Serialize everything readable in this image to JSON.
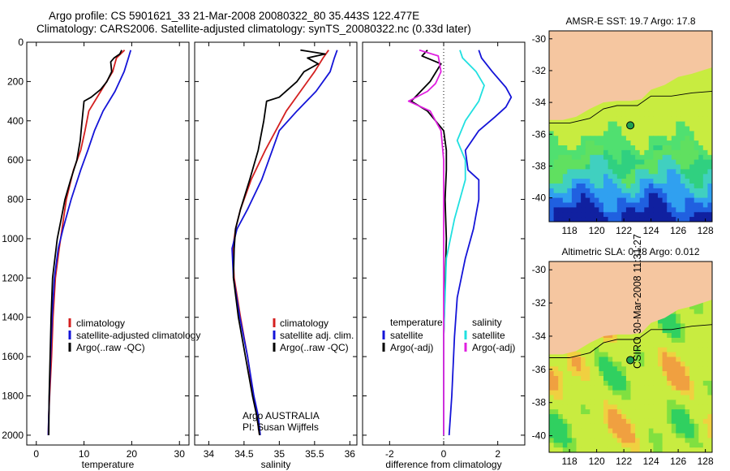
{
  "titles": {
    "line1": "Argo profile: CS 5901621_33 21-Mar-2008 20080322_80 35.443S 122.477E",
    "line2": "Climatology: CARS2006. Satellite-adjusted climatology: synTS_20080322.nc (0.33d later)"
  },
  "side_stamp": "CSIRO 30-Mar-2008 11:31:27",
  "colors": {
    "climatology": "#d42020",
    "satellite": "#1414d8",
    "argo": "#000000",
    "salinity_satellite": "#20e0e0",
    "salinity_argo": "#e020e0",
    "land": "#f5c6a0",
    "marker": "#20a050"
  },
  "chart_data": [
    {
      "type": "line",
      "xlabel": "temperature",
      "xlim": [
        -2,
        32
      ],
      "xticks": [
        0,
        10,
        20,
        30
      ],
      "ylim": [
        0,
        2050
      ],
      "yticks": [
        0,
        200,
        400,
        600,
        800,
        1000,
        1200,
        1400,
        1600,
        1800,
        2000
      ],
      "inverted_y": true,
      "legend": [
        "climatology",
        "satellite-adjusted climatology",
        "Argo(..raw -QC)"
      ],
      "series": [
        {
          "name": "climatology",
          "color": "#d42020",
          "x": [
            18.5,
            16.8,
            16,
            13.5,
            11,
            10.2,
            9.3,
            7.8,
            6.3,
            5.4,
            4.8,
            4.0,
            3.5,
            3.2,
            3.0,
            2.8,
            2.6,
            2.5
          ],
          "y": [
            40,
            80,
            150,
            250,
            350,
            450,
            550,
            650,
            800,
            950,
            1050,
            1200,
            1400,
            1600,
            1700,
            1800,
            1900,
            2000
          ]
        },
        {
          "name": "satellite-adjusted climatology",
          "color": "#1414d8",
          "x": [
            19.8,
            19.3,
            18.4,
            16.5,
            14,
            12.2,
            10.8,
            9.3,
            7.3,
            5.6,
            4.6,
            3.8,
            3.3,
            3.0,
            2.8,
            2.6,
            2.5
          ],
          "y": [
            40,
            80,
            150,
            250,
            350,
            450,
            550,
            650,
            800,
            950,
            1050,
            1200,
            1400,
            1600,
            1750,
            1900,
            2000
          ]
        },
        {
          "name": "Argo(..raw -QC)",
          "color": "#000000",
          "x": [
            17.9,
            17.5,
            16.3,
            15.6,
            15.8,
            14.8,
            13.5,
            11.5,
            10,
            9.6,
            9.2,
            8.5,
            7.2,
            6,
            5.2,
            4.4,
            3.9,
            3.4,
            3.1,
            2.9,
            2.7,
            2.6
          ],
          "y": [
            40,
            60,
            80,
            100,
            150,
            200,
            240,
            280,
            300,
            400,
            500,
            600,
            700,
            800,
            900,
            1000,
            1100,
            1200,
            1400,
            1600,
            1800,
            2000
          ]
        }
      ]
    },
    {
      "type": "line",
      "xlabel": "salinity",
      "xlim": [
        33.8,
        36.1
      ],
      "xticks": [
        34,
        34.5,
        35,
        35.5,
        36
      ],
      "xtick_labels": [
        "34",
        "34.5",
        "35",
        "35.5",
        "36"
      ],
      "ylim": [
        0,
        2050
      ],
      "yticks": [
        0,
        200,
        400,
        600,
        800,
        1000,
        1200,
        1400,
        1600,
        1800,
        2000
      ],
      "inverted_y": true,
      "legend": [
        "climatology",
        "satellite adj. clim.",
        "Argo(..raw -QC)"
      ],
      "annotation": [
        "Argo AUSTRALIA",
        "PI: Susan Wijffels"
      ],
      "series": [
        {
          "name": "climatology",
          "color": "#d42020",
          "x": [
            35.7,
            35.62,
            35.5,
            35.3,
            35.1,
            34.95,
            34.8,
            34.6,
            34.45,
            34.38,
            34.34,
            34.36,
            34.45,
            34.55,
            34.63,
            34.68,
            34.72
          ],
          "y": [
            40,
            80,
            150,
            250,
            350,
            450,
            550,
            700,
            850,
            950,
            1050,
            1200,
            1400,
            1600,
            1800,
            1900,
            2000
          ]
        },
        {
          "name": "satellite adj. clim.",
          "color": "#1414d8",
          "x": [
            35.82,
            35.78,
            35.72,
            35.52,
            35.25,
            35.0,
            34.9,
            34.75,
            34.55,
            34.4,
            34.33,
            34.35,
            34.44,
            34.55,
            34.64,
            34.7,
            34.73
          ],
          "y": [
            40,
            80,
            150,
            250,
            350,
            450,
            550,
            700,
            850,
            950,
            1050,
            1200,
            1400,
            1600,
            1800,
            1900,
            2000
          ]
        },
        {
          "name": "Argo(..raw -QC)",
          "color": "#000000",
          "x": [
            35.3,
            35.65,
            35.4,
            35.55,
            35.35,
            35.25,
            35.0,
            34.82,
            34.78,
            34.7,
            34.58,
            34.45,
            34.38,
            34.36,
            34.35,
            34.42,
            34.52,
            34.62,
            34.68,
            34.72
          ],
          "y": [
            40,
            60,
            80,
            110,
            150,
            200,
            280,
            300,
            400,
            550,
            700,
            850,
            950,
            1050,
            1200,
            1400,
            1600,
            1800,
            1900,
            2000
          ]
        }
      ]
    },
    {
      "type": "line",
      "xlabel": "difference from climatology",
      "xlim": [
        -3,
        3
      ],
      "xticks": [
        -2,
        0,
        2
      ],
      "ylim": [
        0,
        2050
      ],
      "yticks": [
        0,
        200,
        400,
        600,
        800,
        1000,
        1200,
        1400,
        1600,
        1800,
        2000
      ],
      "inverted_y": true,
      "zero_line": 0,
      "legend_headers": [
        "temperature",
        "salinity"
      ],
      "legend": [
        {
          "group": "temperature",
          "label": "satellite",
          "color": "#1414d8"
        },
        {
          "group": "temperature",
          "label": "Argo(-adj)",
          "color": "#000000"
        },
        {
          "group": "salinity",
          "label": "satellite",
          "color": "#20e0e0"
        },
        {
          "group": "salinity",
          "label": "Argo(-adj)",
          "color": "#e020e0"
        }
      ],
      "series": [
        {
          "name": "temperature satellite",
          "color": "#1414d8",
          "x": [
            1.3,
            1.4,
            1.8,
            2.3,
            2.5,
            2.3,
            1.9,
            1.3,
            0.8,
            0.9,
            1.3,
            1.3,
            1.1,
            0.8,
            0.5,
            0.4,
            0.3,
            0.2
          ],
          "y": [
            40,
            80,
            150,
            230,
            280,
            330,
            380,
            450,
            550,
            650,
            700,
            800,
            950,
            1100,
            1300,
            1500,
            1800,
            2000
          ]
        },
        {
          "name": "temperature Argo(-adj)",
          "color": "#000000",
          "x": [
            -0.6,
            -0.8,
            -0.1,
            -0.5,
            -1.2,
            -0.6,
            0,
            0.1,
            0.1,
            0.05,
            0.1,
            0,
            0
          ],
          "y": [
            40,
            70,
            110,
            200,
            300,
            350,
            450,
            550,
            650,
            800,
            1000,
            1500,
            2000
          ]
        },
        {
          "name": "salinity satellite",
          "color": "#20e0e0",
          "x": [
            0.6,
            0.7,
            1.2,
            1.5,
            1.3,
            0.8,
            0.5,
            0.8,
            0.8,
            0.4,
            0.1,
            0,
            0
          ],
          "y": [
            40,
            80,
            150,
            220,
            300,
            400,
            500,
            600,
            700,
            900,
            1100,
            1500,
            2000
          ]
        },
        {
          "name": "salinity Argo(-adj)",
          "color": "#e020e0",
          "x": [
            -0.9,
            -0.2,
            -0.1,
            -0.3,
            -0.6,
            -1.3,
            -0.5,
            -0.1,
            0,
            0,
            0
          ],
          "y": [
            40,
            70,
            150,
            210,
            250,
            300,
            350,
            450,
            600,
            1000,
            2000
          ]
        }
      ]
    },
    {
      "type": "heatmap",
      "title": "AMSR-E SST: 19.7 Argo: 17.8",
      "xlim": [
        116.5,
        128.5
      ],
      "ylim": [
        -41.5,
        -29.5
      ],
      "xticks": [
        118,
        120,
        122,
        124,
        126,
        128
      ],
      "yticks": [
        -30,
        -32,
        -34,
        -36,
        -38,
        -40
      ],
      "marker": {
        "lon": 122.477,
        "lat": -35.443
      },
      "grid": false
    },
    {
      "type": "heatmap",
      "title": "Altimetric SLA: 0.18 Argo: 0.012",
      "xlim": [
        116.5,
        128.5
      ],
      "ylim": [
        -41,
        -29.5
      ],
      "xticks": [
        118,
        120,
        122,
        124,
        126,
        128
      ],
      "yticks": [
        -30,
        -32,
        -34,
        -36,
        -38,
        -40
      ],
      "marker": {
        "lon": 122.477,
        "lat": -35.443
      },
      "grid": false
    }
  ]
}
